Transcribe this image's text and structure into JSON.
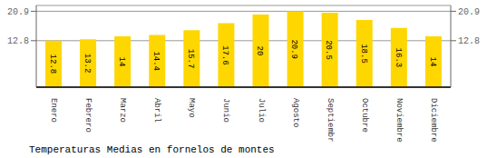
{
  "chart_data": {
    "type": "bar",
    "title": "Temperaturas Medias en fornelos de montes",
    "categories": [
      "Enero",
      "Febrero",
      "Marzo",
      "Abril",
      "Mayo",
      "Junio",
      "Julio",
      "Agosto",
      "Septiembre",
      "Octubre",
      "Noviembre",
      "Diciembre"
    ],
    "values": [
      12.8,
      13.2,
      14.0,
      14.4,
      15.7,
      17.6,
      20.0,
      20.9,
      20.5,
      18.5,
      16.3,
      14.0
    ],
    "color": "#FFD700",
    "ylim": [
      0,
      22.5
    ],
    "yticks": [
      12.8,
      20.9
    ],
    "grid": true,
    "data_labels": true
  }
}
